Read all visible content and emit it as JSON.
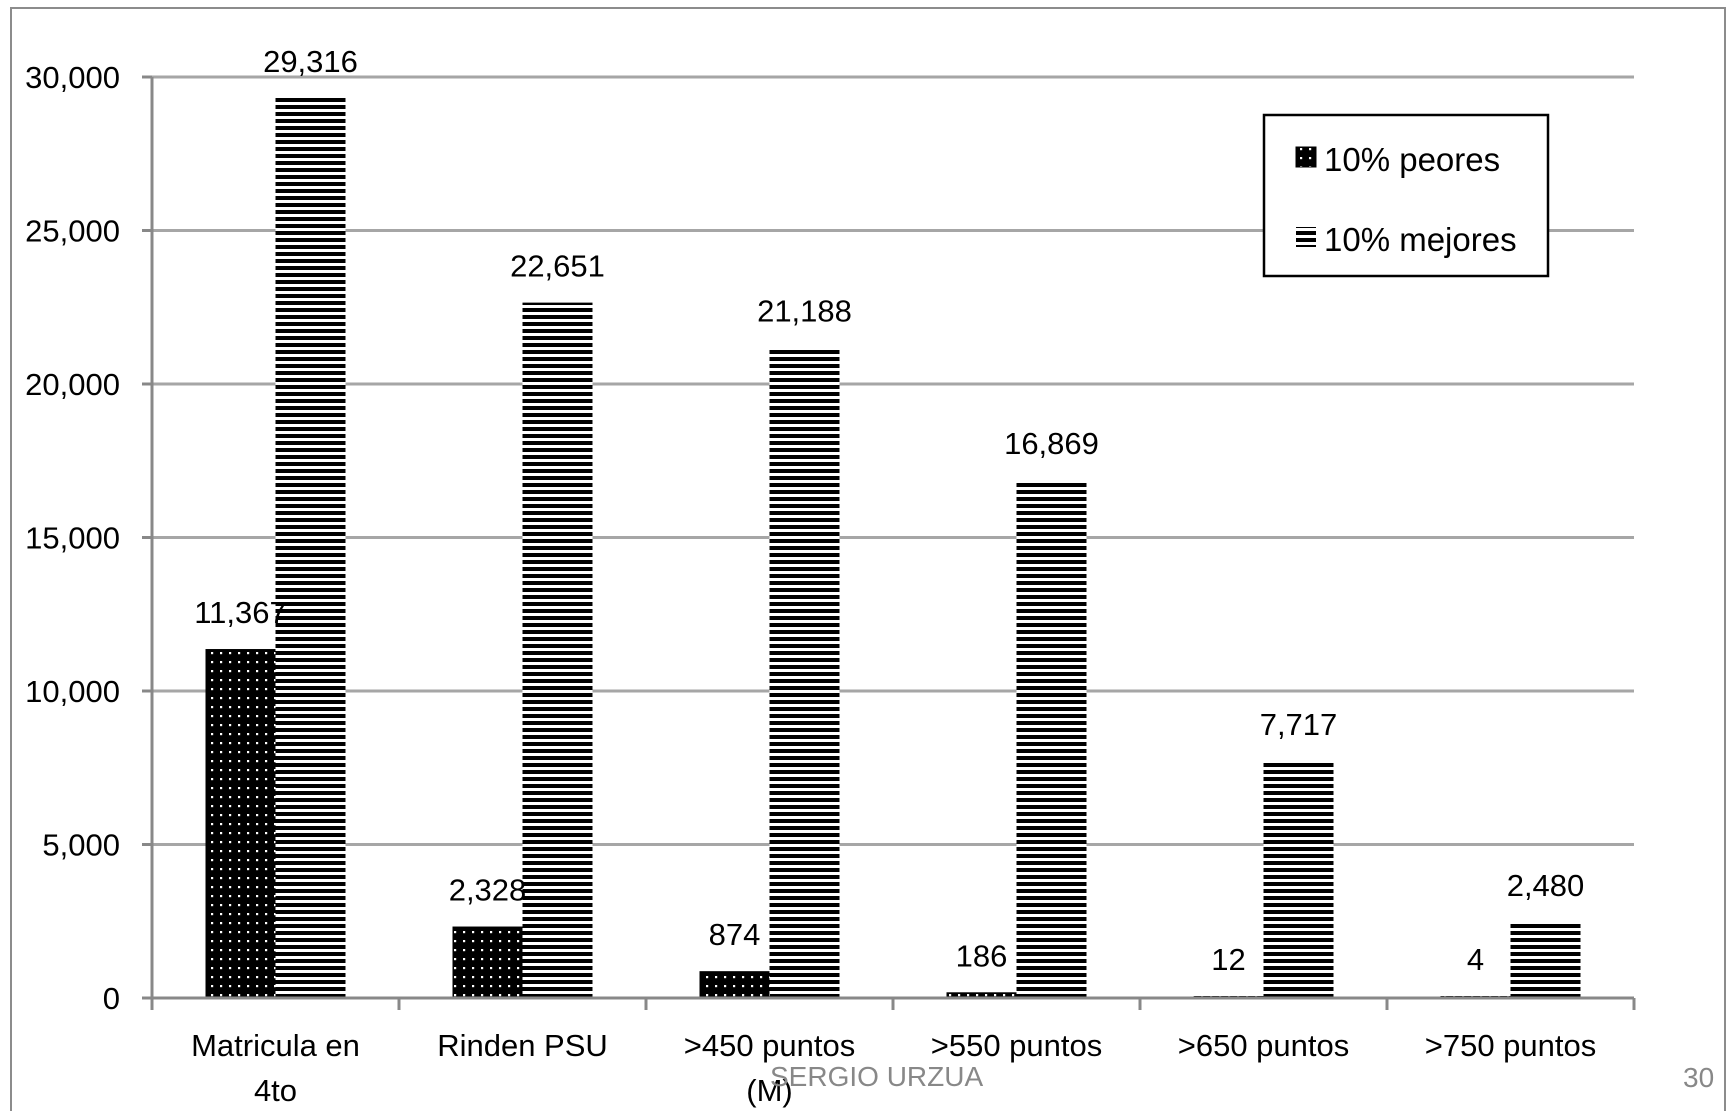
{
  "chart_data": {
    "type": "bar",
    "categories": [
      "Matricula en 4to",
      "Rinden PSU",
      ">450 puntos (M)",
      ">550 puntos",
      ">650 puntos",
      ">750 puntos"
    ],
    "series": [
      {
        "name": "10% peores",
        "values": [
          11367,
          2328,
          874,
          186,
          12,
          4
        ],
        "labels": [
          "11,367",
          "2,328",
          "874",
          "186",
          "12",
          "4"
        ],
        "pattern": "dots"
      },
      {
        "name": "10% mejores",
        "values": [
          29316,
          22651,
          21188,
          16869,
          7717,
          2480
        ],
        "labels": [
          "29,316",
          "22,651",
          "21,188",
          "16,869",
          "7,717",
          "2,480"
        ],
        "pattern": "horizontal-stripes"
      }
    ],
    "ylim": [
      0,
      30000
    ],
    "yticks": [
      0,
      5000,
      10000,
      15000,
      20000,
      25000,
      30000
    ],
    "ytick_labels": [
      "0",
      "5,000",
      "10,000",
      "15,000",
      "20,000",
      "25,000",
      "30,000"
    ],
    "grid": true,
    "legend_position": "top-right",
    "title": "",
    "xlabel": "",
    "ylabel": "",
    "colors": {
      "bar": "#000000",
      "grid": "#a6a6a6",
      "axis": "#888888",
      "frame": "#8c8c8c"
    }
  },
  "footer": {
    "author": "SERGIO URZUA",
    "page": "30"
  }
}
